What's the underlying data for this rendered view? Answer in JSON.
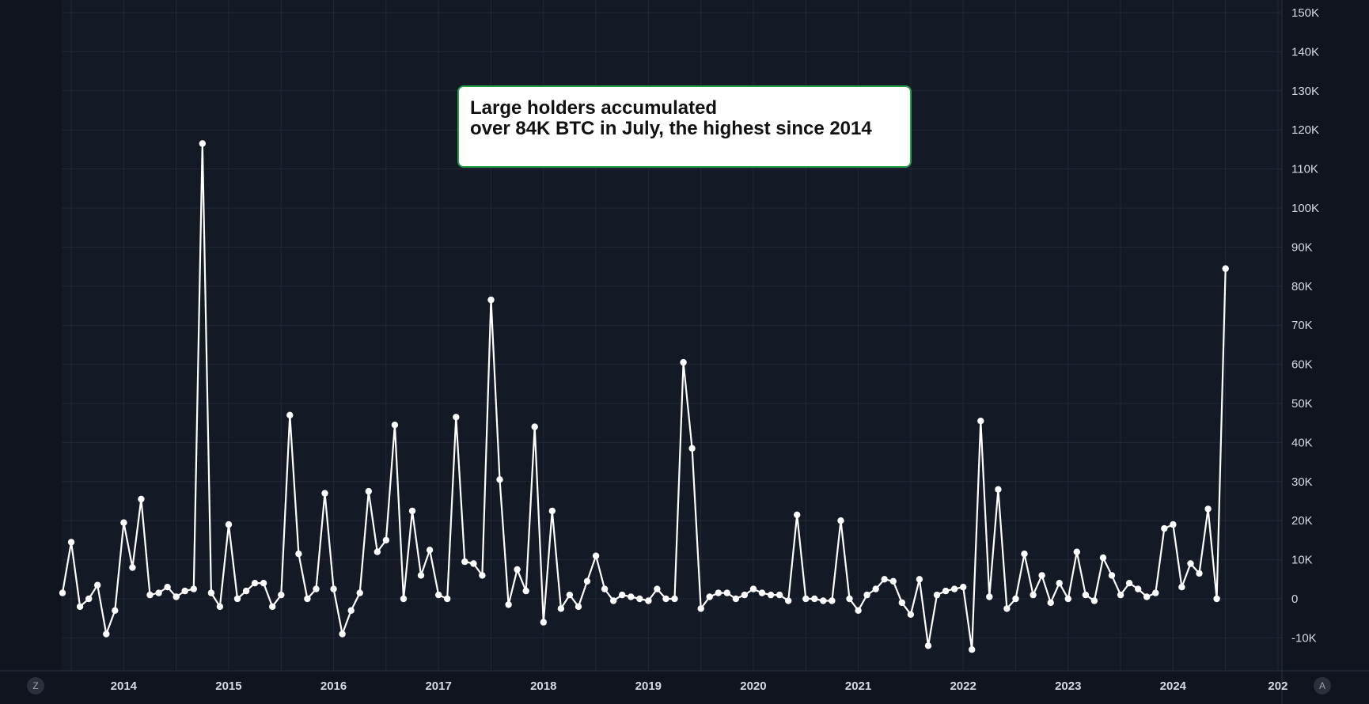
{
  "annotation": {
    "line1": "Large holders accumulated",
    "line2": "over 84K BTC in July, the highest since 2014"
  },
  "controls": {
    "left_button": "Z",
    "right_button": "A"
  },
  "colors": {
    "background": "#10141f",
    "line": "#ffffff",
    "grid": "#222838",
    "annotation_border": "#25a14a"
  },
  "chart_data": {
    "type": "line",
    "title": "",
    "xlabel": "",
    "ylabel": "",
    "ylim": [
      -15000,
      150000
    ],
    "y_axis_position": "right",
    "grid": true,
    "x_tick_labels": [
      "2014",
      "2015",
      "2016",
      "2017",
      "2018",
      "2019",
      "2020",
      "2021",
      "2022",
      "2023",
      "2024",
      "202"
    ],
    "y_tick_labels": [
      "150K",
      "140K",
      "130K",
      "120K",
      "110K",
      "100K",
      "90K",
      "80K",
      "70K",
      "60K",
      "50K",
      "40K",
      "30K",
      "20K",
      "10K",
      "0",
      "-10K"
    ],
    "y_tick_values": [
      150000,
      140000,
      130000,
      120000,
      110000,
      100000,
      90000,
      80000,
      70000,
      60000,
      50000,
      40000,
      30000,
      20000,
      10000,
      0,
      -10000
    ],
    "x_start": "2013-06",
    "x_end": "2024-07",
    "series": [
      {
        "values": [
          1500,
          14500,
          -2000,
          0,
          3500,
          -9000,
          -3000,
          19500,
          8000,
          25500,
          1000,
          1500,
          3000,
          500,
          2000,
          2500,
          116500,
          1500,
          -2000,
          19000,
          0,
          2000,
          4000,
          4000,
          -2000,
          1000,
          47000,
          11500,
          0,
          2500,
          27000,
          2500,
          -9000,
          -3000,
          1500,
          27500,
          12000,
          15000,
          44500,
          0,
          22500,
          6000,
          12500,
          1000,
          0,
          46500,
          9500,
          9000,
          6000,
          76500,
          30500,
          -1500,
          7500,
          2000,
          44000,
          -6000,
          22500,
          -2500,
          1000,
          -2000,
          4500,
          11000,
          2500,
          -500,
          1000,
          500,
          0,
          -500,
          2500,
          0,
          0,
          60500,
          38500,
          -2500,
          500,
          1500,
          1500,
          0,
          1000,
          2500,
          1500,
          1000,
          1000,
          -500,
          21500,
          0,
          0,
          -500,
          -500,
          20000,
          0,
          -3000,
          1000,
          2500,
          5000,
          4500,
          -1000,
          -4000,
          5000,
          -12000,
          1000,
          2000,
          2500,
          3000,
          -13000,
          45500,
          500,
          28000,
          -2500,
          0,
          11500,
          1000,
          6000,
          -1000,
          4000,
          0,
          12000,
          1000,
          -500,
          10500,
          6000,
          1000,
          4000,
          2500,
          500,
          1500,
          18000,
          19000,
          3000,
          9000,
          6500,
          23000,
          0,
          84500
        ]
      }
    ]
  }
}
